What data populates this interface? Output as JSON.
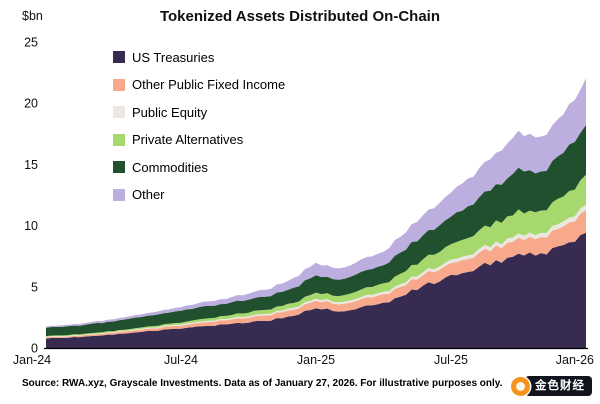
{
  "title": "Tokenized Assets Distributed On-Chain",
  "y_axis_unit": "$bn",
  "footer": "Source: RWA.xyz, Grayscale Investments. Data as of January 27, 2026. For illustrative purposes only.",
  "watermark": {
    "text": "金色财经",
    "accent_color": "#f7931a",
    "bg_color": "#11141d"
  },
  "chart_data": {
    "type": "area",
    "stacked": true,
    "title": "Tokenized Assets Distributed On-Chain",
    "ylabel": "$bn",
    "ylim": [
      0,
      25
    ],
    "y_ticks": [
      0,
      5,
      10,
      15,
      20,
      25
    ],
    "x_range": [
      0,
      24
    ],
    "x_tick_positions": [
      0,
      6,
      12,
      18,
      24
    ],
    "x_tick_labels": [
      "Jan-24",
      "Jul-24",
      "Jan-25",
      "Jul-25",
      "Jan-26"
    ],
    "x_unit": "month index from Jan-24",
    "legend_position": "upper-left-inside",
    "grid": false,
    "series": [
      {
        "name": "US Treasuries",
        "color": "#382b52",
        "values": [
          0.8,
          0.85,
          0.95,
          1.1,
          1.25,
          1.45,
          1.6,
          1.8,
          1.9,
          2.1,
          2.3,
          2.6,
          3.3,
          3.0,
          3.3,
          3.6,
          4.5,
          5.2,
          5.8,
          6.5,
          7.0,
          7.8,
          7.5,
          8.3,
          9.5
        ]
      },
      {
        "name": "Other Public Fixed Income",
        "color": "#f9a98b",
        "values": [
          0.1,
          0.1,
          0.12,
          0.15,
          0.18,
          0.2,
          0.25,
          0.3,
          0.35,
          0.4,
          0.45,
          0.5,
          0.6,
          0.6,
          0.65,
          0.7,
          0.8,
          0.9,
          1.0,
          1.1,
          1.2,
          1.3,
          1.3,
          1.5,
          1.8
        ]
      },
      {
        "name": "Public Equity",
        "color": "#eae7e0",
        "values": [
          0.05,
          0.05,
          0.05,
          0.06,
          0.07,
          0.08,
          0.09,
          0.1,
          0.1,
          0.12,
          0.13,
          0.15,
          0.17,
          0.17,
          0.18,
          0.2,
          0.22,
          0.25,
          0.28,
          0.3,
          0.32,
          0.35,
          0.35,
          0.4,
          0.45
        ]
      },
      {
        "name": "Private Alternatives",
        "color": "#a7d86d",
        "values": [
          0.05,
          0.06,
          0.07,
          0.08,
          0.1,
          0.12,
          0.15,
          0.2,
          0.25,
          0.3,
          0.35,
          0.4,
          0.5,
          0.5,
          0.6,
          0.7,
          0.9,
          1.1,
          1.3,
          1.5,
          1.7,
          1.9,
          1.8,
          2.1,
          2.4
        ]
      },
      {
        "name": "Commodities",
        "color": "#20502e",
        "values": [
          0.7,
          0.72,
          0.75,
          0.8,
          0.85,
          0.9,
          0.95,
          1.0,
          1.0,
          1.05,
          1.1,
          1.2,
          1.4,
          1.3,
          1.4,
          1.5,
          1.8,
          2.0,
          2.3,
          2.6,
          3.0,
          3.4,
          3.2,
          3.6,
          4.1
        ]
      },
      {
        "name": "Other",
        "color": "#bcaede",
        "values": [
          0.1,
          0.12,
          0.15,
          0.18,
          0.2,
          0.25,
          0.3,
          0.35,
          0.4,
          0.5,
          0.6,
          0.8,
          1.0,
          0.9,
          1.0,
          1.1,
          1.4,
          1.7,
          2.0,
          2.3,
          2.6,
          3.0,
          2.8,
          3.2,
          3.7
        ]
      }
    ]
  }
}
